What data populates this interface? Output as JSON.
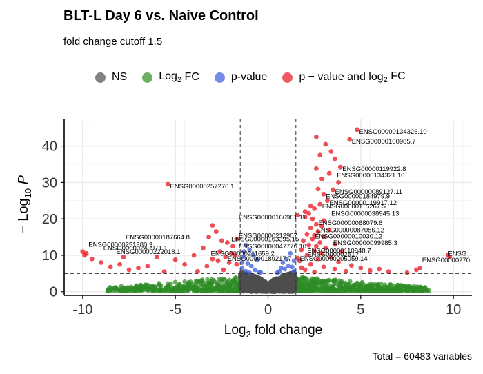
{
  "chart_data": {
    "type": "scatter",
    "title": "BLT-L Day 6 vs. Naive Control",
    "subtitle": "fold change cutoff 1.5",
    "xlabel": "fold change",
    "ylabel": "P",
    "caption": "Total = 60483 variables",
    "xlim": [
      -11,
      11
    ],
    "ylim": [
      -1,
      47.5
    ],
    "x_ticks": [
      -10,
      -5,
      0,
      5,
      10
    ],
    "y_ticks": [
      0,
      10,
      20,
      30,
      40
    ],
    "fc_cutoff_log2": 1.5,
    "p_cutoff_log10": 5,
    "grid": true,
    "legend_position": "top",
    "legend": [
      {
        "key": "NS",
        "label": "NS",
        "color": "#4d4d4d"
      },
      {
        "key": "fc",
        "label": "FC",
        "color": "#2e8b25"
      },
      {
        "key": "p",
        "label": "p-value",
        "color": "#3b5bdb"
      },
      {
        "key": "both",
        "label": "p − value and log",
        "color": "#e8141e"
      }
    ],
    "series": [
      {
        "name": "p − value and log2 FC",
        "color": "#e8141e",
        "points": [
          [
            4.8,
            44.5
          ],
          [
            4.4,
            41.8
          ],
          [
            2.6,
            42.5
          ],
          [
            3.1,
            40.5
          ],
          [
            3.4,
            38.5
          ],
          [
            3.6,
            36.5
          ],
          [
            2.8,
            37.5
          ],
          [
            3.9,
            34.2
          ],
          [
            2.6,
            33.8
          ],
          [
            3.3,
            32.5
          ],
          [
            2.9,
            31.0
          ],
          [
            3.8,
            30.0
          ],
          [
            3.5,
            28.0
          ],
          [
            2.7,
            28.2
          ],
          [
            3.0,
            26.8
          ],
          [
            3.2,
            25.0
          ],
          [
            2.8,
            24.0
          ],
          [
            2.5,
            22.8
          ],
          [
            2.2,
            21.5
          ],
          [
            2.0,
            20.5
          ],
          [
            2.4,
            20.0
          ],
          [
            3.0,
            19.5
          ],
          [
            2.6,
            18.5
          ],
          [
            2.9,
            18.0
          ],
          [
            2.3,
            17.5
          ],
          [
            3.3,
            17.0
          ],
          [
            2.7,
            16.5
          ],
          [
            2.1,
            15.8
          ],
          [
            2.5,
            15.5
          ],
          [
            3.0,
            15.0
          ],
          [
            2.4,
            14.5
          ],
          [
            1.9,
            14.0
          ],
          [
            2.8,
            13.5
          ],
          [
            3.6,
            13.0
          ],
          [
            2.2,
            12.8
          ],
          [
            2.6,
            12.5
          ],
          [
            3.1,
            12.0
          ],
          [
            1.8,
            11.5
          ],
          [
            2.5,
            11.2
          ],
          [
            4.0,
            11.0
          ],
          [
            2.9,
            10.5
          ],
          [
            2.1,
            10.0
          ],
          [
            3.4,
            9.5
          ],
          [
            2.7,
            9.0
          ],
          [
            1.7,
            8.5
          ],
          [
            3.8,
            8.2
          ],
          [
            2.3,
            7.5
          ],
          [
            4.5,
            7.2
          ],
          [
            3.0,
            6.8
          ],
          [
            5.0,
            6.5
          ],
          [
            2.0,
            6.0
          ],
          [
            5.5,
            5.8
          ],
          [
            6.5,
            5.5
          ],
          [
            7.5,
            5.2
          ],
          [
            8.0,
            6.0
          ],
          [
            8.2,
            6.5
          ],
          [
            3.6,
            6.2
          ],
          [
            4.2,
            5.6
          ],
          [
            2.5,
            5.4
          ],
          [
            6.0,
            6.2
          ],
          [
            1.8,
            6.6
          ],
          [
            1.6,
            9.2
          ],
          [
            2.0,
            22.0
          ],
          [
            1.6,
            21.0
          ],
          [
            2.3,
            23.5
          ],
          [
            9.7,
            10.0
          ],
          [
            9.8,
            9.5
          ],
          [
            -5.4,
            29.5
          ],
          [
            -3.0,
            18.2
          ],
          [
            -3.2,
            15.0
          ],
          [
            -2.8,
            16.5
          ],
          [
            -2.5,
            14.0
          ],
          [
            -2.2,
            13.5
          ],
          [
            -1.9,
            12.5
          ],
          [
            -1.7,
            14.5
          ],
          [
            -3.5,
            12.0
          ],
          [
            -2.6,
            11.0
          ],
          [
            -2.0,
            10.5
          ],
          [
            -4.0,
            10.0
          ],
          [
            -1.8,
            10.0
          ],
          [
            -2.3,
            9.5
          ],
          [
            -3.0,
            9.0
          ],
          [
            -2.7,
            8.5
          ],
          [
            -5.0,
            8.8
          ],
          [
            -6.0,
            9.5
          ],
          [
            -4.5,
            7.5
          ],
          [
            -2.1,
            8.0
          ],
          [
            -3.3,
            7.0
          ],
          [
            -6.5,
            7.0
          ],
          [
            -7.0,
            6.5
          ],
          [
            -7.5,
            6.0
          ],
          [
            -8.0,
            7.5
          ],
          [
            -8.5,
            6.8
          ],
          [
            -9.0,
            8.0
          ],
          [
            -9.5,
            9.0
          ],
          [
            -9.8,
            10.5
          ],
          [
            -10.0,
            11.0
          ],
          [
            -9.9,
            10.0
          ],
          [
            -7.8,
            9.5
          ],
          [
            -5.6,
            5.5
          ],
          [
            -2.4,
            6.0
          ],
          [
            -1.7,
            7.5
          ],
          [
            -3.8,
            5.6
          ]
        ]
      },
      {
        "name": "p-value",
        "color": "#3b5bdb",
        "points": [
          [
            -1.2,
            12.8
          ],
          [
            -1.0,
            11.5
          ],
          [
            -0.8,
            10.2
          ],
          [
            -1.3,
            9.5
          ],
          [
            -0.6,
            8.8
          ],
          [
            -1.1,
            7.8
          ],
          [
            -0.9,
            7.0
          ],
          [
            -1.4,
            6.5
          ],
          [
            -0.7,
            6.0
          ],
          [
            -1.2,
            5.6
          ],
          [
            -0.5,
            5.4
          ],
          [
            -1.0,
            5.2
          ],
          [
            0.6,
            5.5
          ],
          [
            0.9,
            6.2
          ],
          [
            1.1,
            7.0
          ],
          [
            0.8,
            8.0
          ],
          [
            1.3,
            6.8
          ],
          [
            1.0,
            9.0
          ],
          [
            1.2,
            10.5
          ],
          [
            0.7,
            6.5
          ],
          [
            1.4,
            8.5
          ],
          [
            -1.3,
            11.0
          ],
          [
            -0.4,
            5.3
          ],
          [
            0.5,
            5.2
          ],
          [
            1.4,
            5.6
          ],
          [
            -1.4,
            8.0
          ]
        ]
      }
    ],
    "labels": [
      {
        "text": "ENSG00000134326.10",
        "x": 4.8,
        "y": 44.5
      },
      {
        "text": "ENSG00000100985.7",
        "x": 4.4,
        "y": 41.8
      },
      {
        "text": "ENSG00000119922.8",
        "x": 3.9,
        "y": 34.2
      },
      {
        "text": "ENSG00000134321.10",
        "x": 3.6,
        "y": 32.5
      },
      {
        "text": "ENSG00000257270.1",
        "x": -5.4,
        "y": 29.5
      },
      {
        "text": "ENSG00000089127.11",
        "x": 3.5,
        "y": 28.0
      },
      {
        "text": "ENSG00000184979.9",
        "x": 3.0,
        "y": 26.8
      },
      {
        "text": "ENSG00000119917.12",
        "x": 3.2,
        "y": 25.0
      },
      {
        "text": "ENSG00000115267.5",
        "x": 2.8,
        "y": 24.0
      },
      {
        "text": "ENSG00000038945.13",
        "x": 3.3,
        "y": 22.0
      },
      {
        "text": "ENSG00000166961.11",
        "x": -1.7,
        "y": 21.0
      },
      {
        "text": "ENSG00000068079.6",
        "x": 2.6,
        "y": 19.5
      },
      {
        "text": "ENSG00000087086.12",
        "x": 2.5,
        "y": 17.5
      },
      {
        "text": "ENSG00000212907",
        "x": -1.7,
        "y": 16.0
      },
      {
        "text": "ENSG00000010030.12",
        "x": 2.4,
        "y": 15.8
      },
      {
        "text": "ENSG00000187664.8",
        "x": -7.8,
        "y": 15.5
      },
      {
        "text": "ENSG00000163395.15",
        "x": -2.1,
        "y": 15.0
      },
      {
        "text": "ENSG00000099985.3",
        "x": 3.4,
        "y": 14.0
      },
      {
        "text": "ENSG00000251380.3",
        "x": -9.8,
        "y": 13.5
      },
      {
        "text": "ENSG00000047776.10",
        "x": -1.7,
        "y": 13.0
      },
      {
        "text": "ENSG00000249971.1",
        "x": -9.0,
        "y": 12.5
      },
      {
        "text": "ENSG00000110848.7",
        "x": 2.0,
        "y": 11.8
      },
      {
        "text": "ENSG00000222018.1",
        "x": -8.3,
        "y": 11.5
      },
      {
        "text": "ENSG00000211659.2",
        "x": -3.2,
        "y": 11.0
      },
      {
        "text": "ENSG00000251?",
        "x": 2.0,
        "y": 10.8
      },
      {
        "text": "ENSG00000189217.7",
        "x": -2.3,
        "y": 9.6
      },
      {
        "text": "ENSG00000005059.14",
        "x": 1.6,
        "y": 9.6
      },
      {
        "text": "ENSG00000270",
        "x": 8.2,
        "y": 9.2
      },
      {
        "text": "ENSG",
        "x": 9.6,
        "y": 11.0
      }
    ]
  }
}
